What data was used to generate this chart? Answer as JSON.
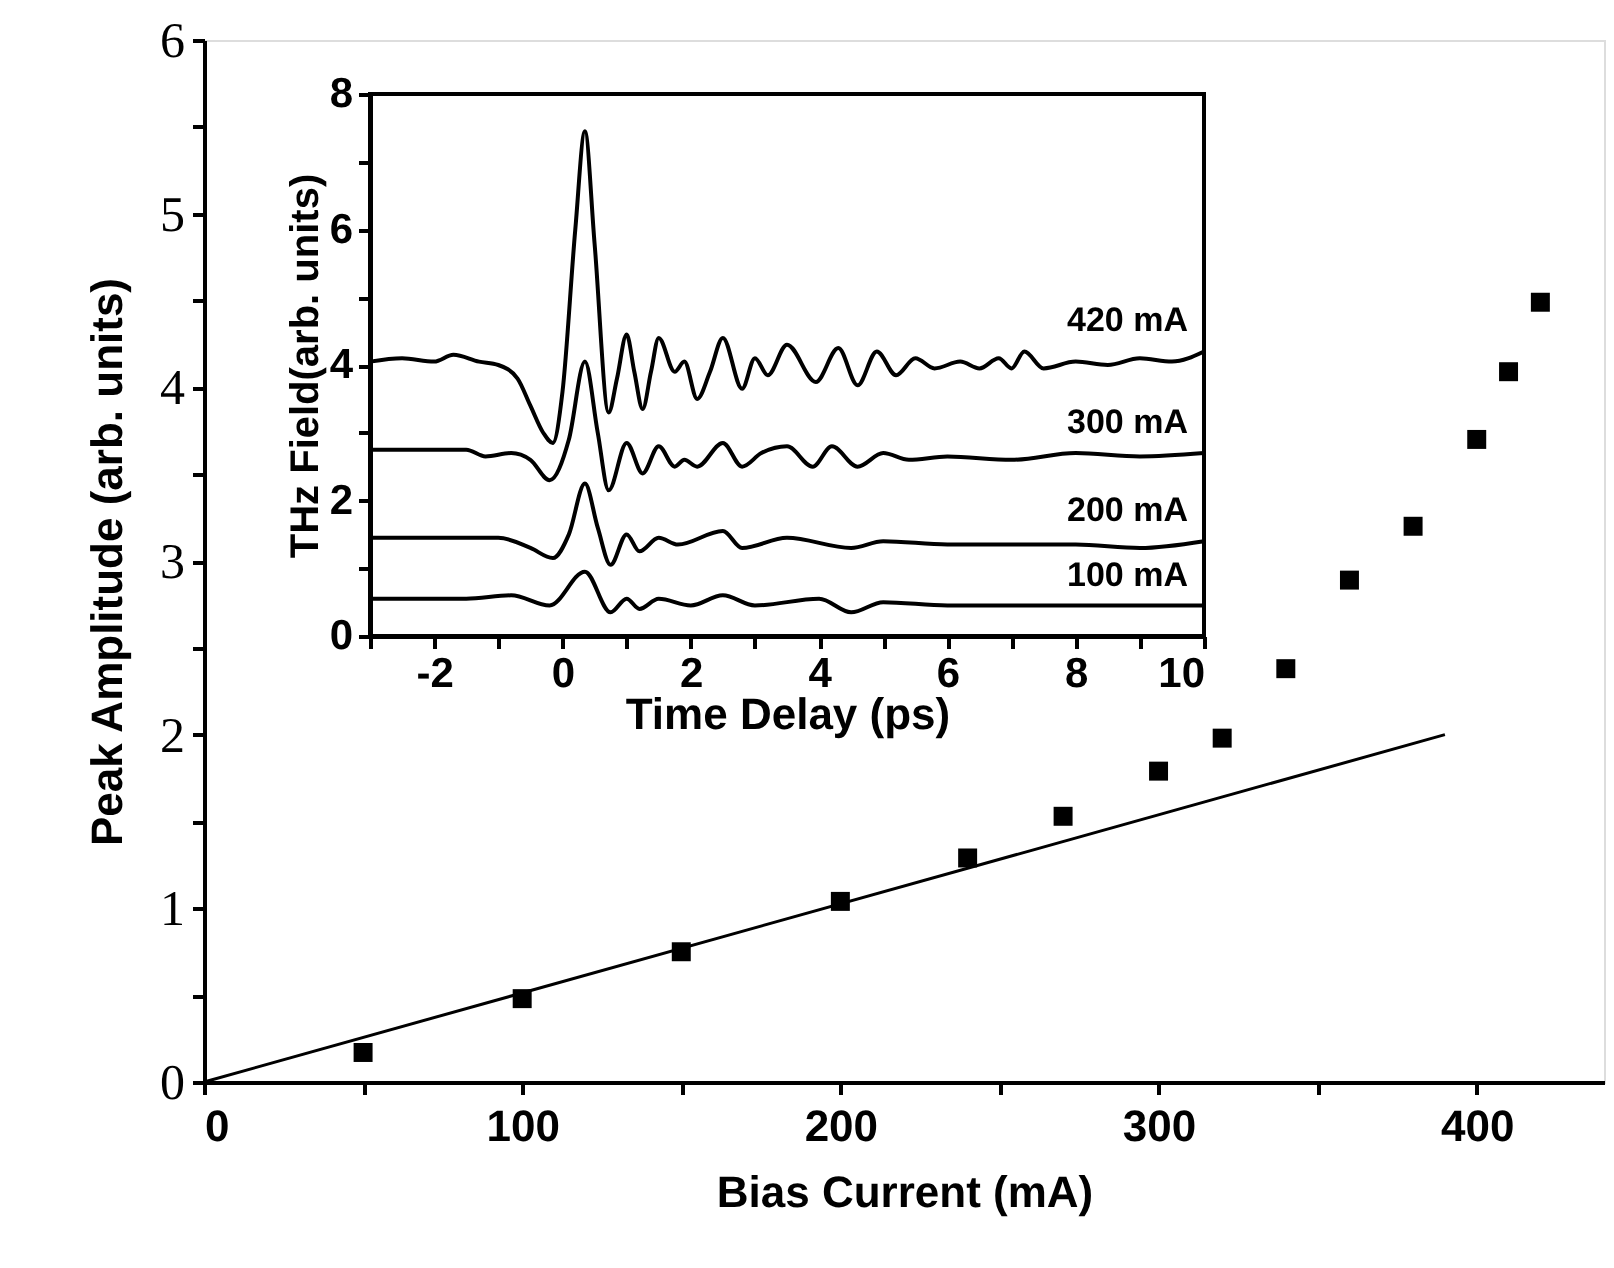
{
  "chart_data": [
    {
      "type": "scatter",
      "xlabel": "Bias Current (mA)",
      "ylabel": "Peak Amplitude (arb. units)",
      "xlim": [
        0,
        440
      ],
      "ylim": [
        0,
        6
      ],
      "xticks": [
        0,
        {
          "value": 50,
          "label": null
        },
        100,
        {
          "value": 150,
          "label": null
        },
        200,
        {
          "value": 250,
          "label": null
        },
        300,
        {
          "value": 350,
          "label": null
        },
        400
      ],
      "yticks": [
        0,
        {
          "value": 0.5,
          "label": null
        },
        1,
        {
          "value": 1.5,
          "label": null
        },
        2,
        {
          "value": 2.5,
          "label": null
        },
        3,
        {
          "value": 3.5,
          "label": null
        },
        4,
        {
          "value": 4.5,
          "label": null
        },
        5,
        {
          "value": 5.5,
          "label": null
        },
        6
      ],
      "grid": false,
      "series": [
        {
          "type": "scatter",
          "marker": "square",
          "color": "#000000",
          "x": [
            50,
            100,
            150,
            200,
            240,
            270,
            300,
            320,
            340,
            360,
            380,
            400,
            410,
            420
          ],
          "values": [
            0.17,
            0.48,
            0.75,
            1.04,
            1.29,
            1.53,
            1.79,
            1.98,
            2.38,
            2.89,
            3.2,
            3.7,
            4.09,
            4.49
          ]
        },
        {
          "type": "line",
          "color": "#000000",
          "line_style": "solid",
          "x": [
            0,
            390
          ],
          "values": [
            0,
            2.0
          ]
        }
      ]
    },
    {
      "type": "line",
      "xlabel": "Time Delay (ps)",
      "ylabel": "THz Field(arb. units)",
      "xlim": [
        -3,
        10
      ],
      "ylim": [
        0,
        8
      ],
      "xticks": [
        {
          "value": -3,
          "label": null
        },
        -2,
        {
          "value": -1,
          "label": null
        },
        0,
        {
          "value": 1,
          "label": null
        },
        2,
        {
          "value": 3,
          "label": null
        },
        4,
        {
          "value": 5,
          "label": null
        },
        6,
        {
          "value": 7,
          "label": null
        },
        8,
        {
          "value": 9,
          "label": null
        },
        10
      ],
      "yticks": [
        0,
        {
          "value": 1,
          "label": null
        },
        2,
        {
          "value": 3,
          "label": null
        },
        4,
        {
          "value": 5,
          "label": null
        },
        6,
        {
          "value": 7,
          "label": null
        },
        8
      ],
      "grid": false,
      "line_style": "solid",
      "series": [
        {
          "name": "420 mA",
          "color": "#000000",
          "x": [
            -3,
            -2.5,
            -2,
            -1.7,
            -1.3,
            -1,
            -0.7,
            -0.5,
            -0.3,
            -0.15,
            0,
            0.2,
            0.35,
            0.5,
            0.72,
            0.85,
            1.0,
            1.12,
            1.25,
            1.38,
            1.5,
            1.75,
            1.9,
            2.1,
            2.3,
            2.5,
            2.8,
            3.0,
            3.2,
            3.5,
            3.95,
            4.3,
            4.6,
            4.9,
            5.2,
            5.5,
            5.8,
            6.2,
            6.5,
            6.8,
            7.0,
            7.2,
            7.5,
            8.0,
            8.5,
            9.0,
            9.5,
            10
          ],
          "values": [
            4.05,
            4.1,
            4.05,
            4.15,
            4.05,
            4.0,
            3.8,
            3.4,
            3.0,
            2.85,
            3.6,
            6.0,
            7.45,
            5.8,
            3.3,
            3.8,
            4.45,
            3.9,
            3.35,
            3.9,
            4.4,
            3.9,
            4.05,
            3.5,
            3.9,
            4.4,
            3.65,
            4.1,
            3.85,
            4.3,
            3.75,
            4.25,
            3.7,
            4.2,
            3.85,
            4.1,
            3.95,
            4.05,
            3.95,
            4.1,
            3.95,
            4.2,
            3.95,
            4.05,
            4.0,
            4.1,
            4.05,
            4.2
          ]
        },
        {
          "name": "300 mA",
          "color": "#000000",
          "x": [
            -3,
            -1.5,
            -1.2,
            -0.8,
            -0.5,
            -0.2,
            0.1,
            0.35,
            0.55,
            0.72,
            1.0,
            1.25,
            1.5,
            1.75,
            1.9,
            2.1,
            2.5,
            2.8,
            3.1,
            3.5,
            3.9,
            4.2,
            4.6,
            5.0,
            5.4,
            6.0,
            7.0,
            8.0,
            9.0,
            10
          ],
          "values": [
            2.75,
            2.75,
            2.65,
            2.7,
            2.6,
            2.3,
            2.9,
            4.05,
            3.0,
            2.15,
            2.85,
            2.4,
            2.8,
            2.5,
            2.6,
            2.5,
            2.85,
            2.5,
            2.7,
            2.8,
            2.5,
            2.8,
            2.5,
            2.7,
            2.6,
            2.65,
            2.6,
            2.7,
            2.65,
            2.7
          ]
        },
        {
          "name": "200 mA",
          "color": "#000000",
          "x": [
            -3,
            -1,
            -0.5,
            -0.15,
            0.1,
            0.35,
            0.55,
            0.75,
            1.0,
            1.2,
            1.5,
            1.8,
            2.5,
            2.8,
            3.5,
            4.5,
            5.0,
            6.0,
            8.0,
            9.0,
            10
          ],
          "values": [
            1.45,
            1.45,
            1.3,
            1.15,
            1.5,
            2.25,
            1.6,
            1.05,
            1.5,
            1.25,
            1.45,
            1.35,
            1.55,
            1.3,
            1.45,
            1.3,
            1.4,
            1.35,
            1.35,
            1.3,
            1.4
          ]
        },
        {
          "name": "100 mA",
          "color": "#000000",
          "x": [
            -3,
            -1.5,
            -0.8,
            -0.2,
            0.35,
            0.75,
            1.0,
            1.2,
            1.5,
            2.0,
            2.5,
            3.0,
            4.0,
            4.5,
            5.0,
            6.0,
            8.0,
            10
          ],
          "values": [
            0.55,
            0.55,
            0.6,
            0.45,
            0.95,
            0.35,
            0.55,
            0.4,
            0.55,
            0.45,
            0.6,
            0.45,
            0.55,
            0.35,
            0.5,
            0.45,
            0.45,
            0.45
          ]
        }
      ]
    }
  ]
}
